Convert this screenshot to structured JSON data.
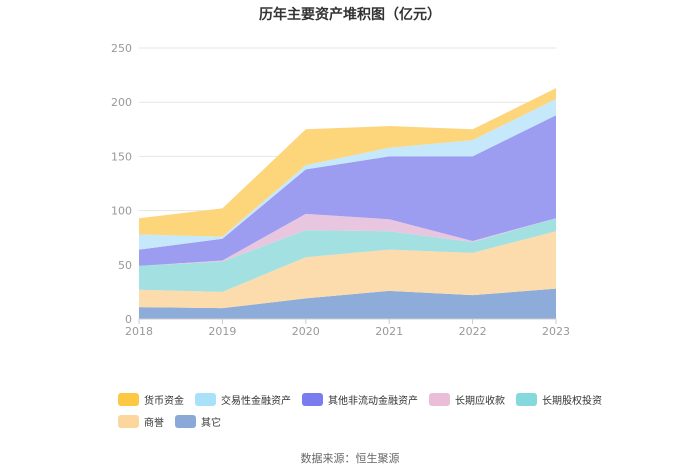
{
  "chart_data": {
    "type": "area",
    "stacked": true,
    "title": "历年主要资产堆积图（亿元）",
    "x": [
      "2018",
      "2019",
      "2020",
      "2021",
      "2022",
      "2023"
    ],
    "yticks": [
      0,
      50,
      100,
      150,
      200,
      250
    ],
    "ylim": [
      0,
      250
    ],
    "grid": true,
    "legend_position": "bottom",
    "series": [
      {
        "name": "其它",
        "color": "#8eacd9",
        "values": [
          11,
          10,
          19,
          26,
          22,
          28
        ]
      },
      {
        "name": "商誉",
        "color": "#fcdcac",
        "values": [
          16,
          15,
          38,
          38,
          39,
          53
        ]
      },
      {
        "name": "长期股权投资",
        "color": "#a3e0e2",
        "values": [
          22,
          28,
          25,
          17,
          10,
          12
        ]
      },
      {
        "name": "长期应收款",
        "color": "#e9c6e0",
        "values": [
          0,
          1,
          15,
          11,
          1,
          0
        ]
      },
      {
        "name": "其他非流动金融资产",
        "color": "#9c9cf1",
        "values": [
          15,
          20,
          41,
          58,
          78,
          95
        ]
      },
      {
        "name": "交易性金融资产",
        "color": "#c6e8fb",
        "values": [
          14,
          2,
          4,
          8,
          15,
          15
        ]
      },
      {
        "name": "货币资金",
        "color": "#fdd57a",
        "values": [
          15,
          26,
          33,
          20,
          10,
          10
        ]
      }
    ]
  },
  "legend": {
    "items": [
      {
        "label": "货币资金",
        "color": "#fdc843"
      },
      {
        "label": "交易性金融资产",
        "color": "#a9e0fa"
      },
      {
        "label": "其他非流动金融资产",
        "color": "#7b7bf0"
      },
      {
        "label": "长期应收款",
        "color": "#ebbdd9"
      },
      {
        "label": "长期股权投资",
        "color": "#85d9dc"
      },
      {
        "label": "商誉",
        "color": "#fcd79d"
      },
      {
        "label": "其它",
        "color": "#8aa9d9"
      }
    ]
  },
  "source": "数据来源：恒生聚源"
}
